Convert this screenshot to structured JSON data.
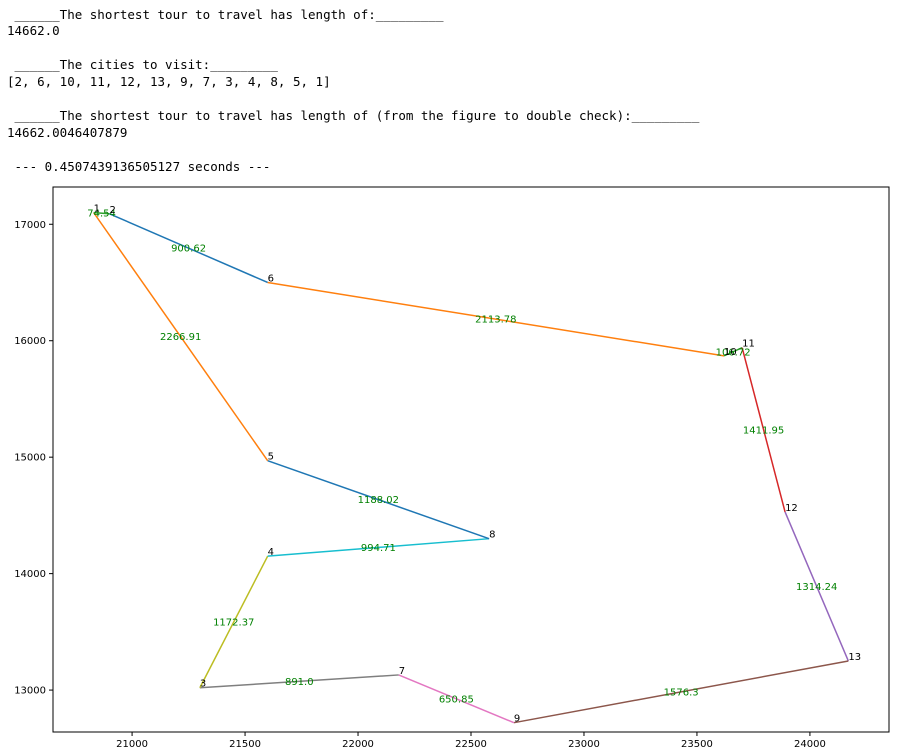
{
  "output": {
    "line1": " ______The shortest tour to travel has length of:_________",
    "line2": "14662.0",
    "line3": " ______The cities to visit:_________",
    "line4": "[2, 6, 10, 11, 12, 13, 9, 7, 3, 4, 8, 5, 1]",
    "line5": " ______The shortest tour to travel has length of (from the figure to double check):_________",
    "line6": "14662.0046407879",
    "line7": " --- 0.4507439136505127 seconds ---"
  },
  "chart_data": {
    "type": "line",
    "title": "",
    "xlabel": "",
    "ylabel": "",
    "xlim": [
      20650,
      24350
    ],
    "ylim": [
      12640,
      17320
    ],
    "xticks": [
      21000,
      21500,
      22000,
      22500,
      23000,
      23500,
      24000
    ],
    "yticks": [
      13000,
      14000,
      15000,
      16000,
      17000
    ],
    "grid": false,
    "cities": [
      {
        "id": "1",
        "x": 20830,
        "y": 17100
      },
      {
        "id": "2",
        "x": 20900,
        "y": 17090
      },
      {
        "id": "3",
        "x": 21300,
        "y": 13020
      },
      {
        "id": "4",
        "x": 21600,
        "y": 14150
      },
      {
        "id": "5",
        "x": 21600,
        "y": 14970
      },
      {
        "id": "6",
        "x": 21600,
        "y": 16500
      },
      {
        "id": "7",
        "x": 22180,
        "y": 13130
      },
      {
        "id": "8",
        "x": 22580,
        "y": 14300
      },
      {
        "id": "9",
        "x": 22690,
        "y": 12720
      },
      {
        "id": "10",
        "x": 23620,
        "y": 15870
      },
      {
        "id": "11",
        "x": 23700,
        "y": 15940
      },
      {
        "id": "12",
        "x": 23890,
        "y": 14530
      },
      {
        "id": "13",
        "x": 24170,
        "y": 13250
      }
    ],
    "edges": [
      {
        "from": "2",
        "to": "6",
        "label": "900.62",
        "color": "#1f77b4"
      },
      {
        "from": "6",
        "to": "10",
        "label": "2113.78",
        "color": "#ff7f0e"
      },
      {
        "from": "10",
        "to": "11",
        "label": "106.72",
        "color": "#2ca02c"
      },
      {
        "from": "11",
        "to": "12",
        "label": "1411.95",
        "color": "#d62728"
      },
      {
        "from": "12",
        "to": "13",
        "label": "1314.24",
        "color": "#9467bd"
      },
      {
        "from": "13",
        "to": "9",
        "label": "1576.3",
        "color": "#8c564b"
      },
      {
        "from": "9",
        "to": "7",
        "label": "650.85",
        "color": "#e377c2"
      },
      {
        "from": "7",
        "to": "3",
        "label": "891.0",
        "color": "#7f7f7f"
      },
      {
        "from": "3",
        "to": "4",
        "label": "1172.37",
        "color": "#bcbd22"
      },
      {
        "from": "4",
        "to": "8",
        "label": "994.71",
        "color": "#17becf"
      },
      {
        "from": "8",
        "to": "5",
        "label": "1188.02",
        "color": "#1f77b4"
      },
      {
        "from": "5",
        "to": "1",
        "label": "2266.91",
        "color": "#ff7f0e"
      },
      {
        "from": "1",
        "to": "2",
        "label": "74.54",
        "color": "#2ca02c"
      }
    ],
    "edge_label_color": "#008000"
  }
}
